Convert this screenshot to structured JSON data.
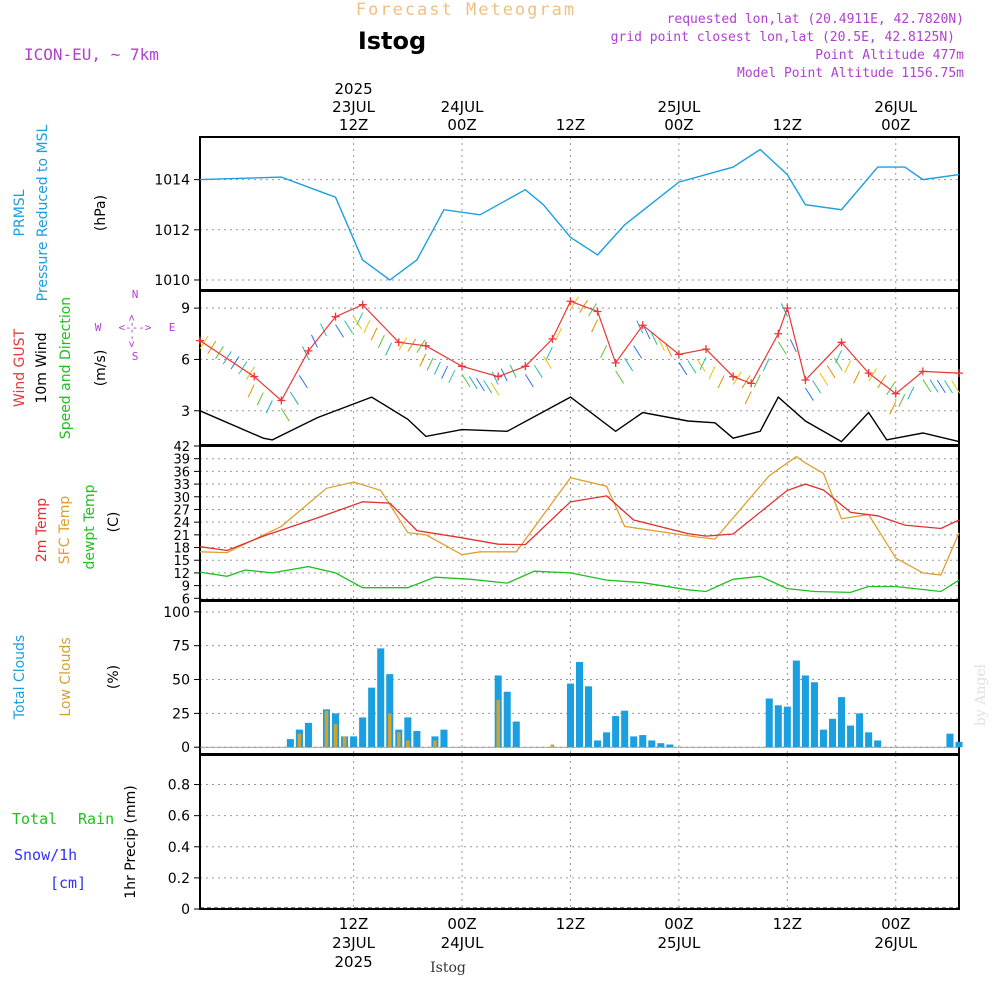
{
  "header": {
    "title": "Forecast Meteogram",
    "station": "Istog",
    "model": "ICON-EU, ~ 7km",
    "requested": "requested lon,lat (20.4911E, 42.7820N)",
    "grid_point": "grid point closest lon,lat (20.5E, 42.8125N)",
    "point_alt": "Point Altitude 477m",
    "model_alt": "Model Point Altitude 1156.75m",
    "credit": "by Angel",
    "footer_station": "Istog"
  },
  "colors": {
    "prmsl": "#1a9fe0",
    "gust": "#e83838",
    "wind10": "#000000",
    "t2m": "#e03030",
    "tsfc": "#e0a030",
    "dewpt": "#20c020",
    "total_cloud": "#1a9fe0",
    "low_cloud": "#d4a030",
    "rain": "#20c020",
    "snow": "#3030ff",
    "meta": "#b040d0",
    "title": "#f0c080"
  },
  "time_axis": {
    "start": "2025-07-22T19:00Z",
    "end": "2025-07-26T07:00Z",
    "top_labels": [
      {
        "t": "2025-07-23T12:00Z",
        "lines": [
          "2025",
          "23JUL",
          "12Z"
        ]
      },
      {
        "t": "2025-07-24T00:00Z",
        "lines": [
          "24JUL",
          "00Z"
        ]
      },
      {
        "t": "2025-07-24T12:00Z",
        "lines": [
          "12Z"
        ]
      },
      {
        "t": "2025-07-25T00:00Z",
        "lines": [
          "25JUL",
          "00Z"
        ]
      },
      {
        "t": "2025-07-25T12:00Z",
        "lines": [
          "12Z"
        ]
      },
      {
        "t": "2025-07-26T00:00Z",
        "lines": [
          "26JUL",
          "00Z"
        ]
      }
    ],
    "bottom_labels": [
      {
        "t": "2025-07-23T12:00Z",
        "lines": [
          "12Z",
          "23JUL",
          "2025"
        ]
      },
      {
        "t": "2025-07-24T00:00Z",
        "lines": [
          "00Z",
          "24JUL"
        ]
      },
      {
        "t": "2025-07-24T12:00Z",
        "lines": [
          "12Z"
        ]
      },
      {
        "t": "2025-07-25T00:00Z",
        "lines": [
          "00Z",
          "25JUL"
        ]
      },
      {
        "t": "2025-07-25T12:00Z",
        "lines": [
          "12Z"
        ]
      },
      {
        "t": "2025-07-26T00:00Z",
        "lines": [
          "00Z",
          "26JUL"
        ]
      }
    ]
  },
  "chart_data": [
    {
      "type": "line",
      "panel": "pressure",
      "labels": {
        "main": "PRMSL",
        "sub": "Pressure Reduced to MSL",
        "unit": "(hPa)"
      },
      "ylim": [
        1009.6,
        1015.7
      ],
      "yticks": [
        1010,
        1012,
        1014
      ],
      "series": [
        {
          "name": "PRMSL",
          "x": [
            "2025-07-22T19:00Z",
            "2025-07-23T04:00Z",
            "2025-07-23T10:00Z",
            "2025-07-23T13:00Z",
            "2025-07-23T16:00Z",
            "2025-07-23T19:00Z",
            "2025-07-23T22:00Z",
            "2025-07-24T02:00Z",
            "2025-07-24T07:00Z",
            "2025-07-24T09:00Z",
            "2025-07-24T12:00Z",
            "2025-07-24T15:00Z",
            "2025-07-24T18:00Z",
            "2025-07-25T00:00Z",
            "2025-07-25T06:00Z",
            "2025-07-25T09:00Z",
            "2025-07-25T12:00Z",
            "2025-07-25T14:00Z",
            "2025-07-25T18:00Z",
            "2025-07-25T22:00Z",
            "2025-07-26T01:00Z",
            "2025-07-26T03:00Z",
            "2025-07-26T07:00Z"
          ],
          "y": [
            1014.0,
            1014.1,
            1013.3,
            1010.8,
            1010.0,
            1010.8,
            1012.8,
            1012.6,
            1013.6,
            1013.0,
            1011.7,
            1011.0,
            1012.2,
            1013.9,
            1014.5,
            1015.2,
            1014.2,
            1013.0,
            1012.8,
            1014.5,
            1014.5,
            1014.0,
            1014.2
          ]
        }
      ]
    },
    {
      "type": "line",
      "panel": "wind",
      "labels": {
        "gust": "Wind GUST",
        "wind": "10m Wind",
        "sub": "Speed and Direction",
        "unit": "(m/s)",
        "n": "N",
        "s": "S",
        "w": "W",
        "e": "E",
        "arrow": "<--->"
      },
      "ylim": [
        1.0,
        10.0
      ],
      "yticks": [
        3,
        6,
        9
      ],
      "series": [
        {
          "name": "Wind GUST",
          "x": [
            "2025-07-22T19:00Z",
            "2025-07-23T01:00Z",
            "2025-07-23T04:00Z",
            "2025-07-23T07:00Z",
            "2025-07-23T10:00Z",
            "2025-07-23T13:00Z",
            "2025-07-23T17:00Z",
            "2025-07-23T20:00Z",
            "2025-07-24T00:00Z",
            "2025-07-24T04:00Z",
            "2025-07-24T07:00Z",
            "2025-07-24T10:00Z",
            "2025-07-24T12:00Z",
            "2025-07-24T15:00Z",
            "2025-07-24T17:00Z",
            "2025-07-24T20:00Z",
            "2025-07-25T00:00Z",
            "2025-07-25T03:00Z",
            "2025-07-25T06:00Z",
            "2025-07-25T08:00Z",
            "2025-07-25T11:00Z",
            "2025-07-25T12:00Z",
            "2025-07-25T14:00Z",
            "2025-07-25T18:00Z",
            "2025-07-25T21:00Z",
            "2025-07-26T00:00Z",
            "2025-07-26T03:00Z",
            "2025-07-26T07:00Z"
          ],
          "y": [
            7.1,
            5.0,
            3.6,
            6.5,
            8.5,
            9.2,
            7.0,
            6.8,
            5.6,
            5.0,
            5.6,
            7.2,
            9.4,
            8.8,
            5.8,
            8.0,
            6.3,
            6.6,
            5.0,
            4.6,
            7.5,
            9.0,
            4.8,
            7.0,
            5.2,
            4.0,
            5.3,
            5.2
          ]
        },
        {
          "name": "10m Wind",
          "x": [
            "2025-07-22T19:00Z",
            "2025-07-23T02:00Z",
            "2025-07-23T03:00Z",
            "2025-07-23T08:00Z",
            "2025-07-23T14:00Z",
            "2025-07-23T18:00Z",
            "2025-07-23T20:00Z",
            "2025-07-24T00:00Z",
            "2025-07-24T05:00Z",
            "2025-07-24T12:00Z",
            "2025-07-24T17:00Z",
            "2025-07-24T20:00Z",
            "2025-07-25T01:00Z",
            "2025-07-25T04:00Z",
            "2025-07-25T06:00Z",
            "2025-07-25T09:00Z",
            "2025-07-25T11:00Z",
            "2025-07-25T14:00Z",
            "2025-07-25T18:00Z",
            "2025-07-25T21:00Z",
            "2025-07-25T23:00Z",
            "2025-07-26T03:00Z",
            "2025-07-26T07:00Z"
          ],
          "y": [
            3.0,
            1.4,
            1.3,
            2.6,
            3.8,
            2.5,
            1.5,
            1.9,
            1.8,
            3.8,
            1.8,
            2.9,
            2.4,
            2.3,
            1.4,
            1.8,
            3.8,
            2.4,
            1.2,
            2.9,
            1.3,
            1.7,
            1.2
          ]
        }
      ]
    },
    {
      "type": "line",
      "panel": "temperature",
      "labels": {
        "t2m": "2m Temp",
        "tsfc": "SFC Temp",
        "dewpt": "dewpt Temp",
        "unit": "(C)"
      },
      "ylim": [
        5.6,
        42.0
      ],
      "yticks": [
        6,
        9,
        12,
        15,
        18,
        21,
        24,
        27,
        30,
        33,
        36,
        39,
        42
      ],
      "series": [
        {
          "name": "2m Temp",
          "x": [
            "2025-07-22T19:00Z",
            "2025-07-22T22:00Z",
            "2025-07-23T02:00Z",
            "2025-07-23T08:00Z",
            "2025-07-23T13:00Z",
            "2025-07-23T16:00Z",
            "2025-07-23T19:00Z",
            "2025-07-24T00:00Z",
            "2025-07-24T04:00Z",
            "2025-07-24T07:00Z",
            "2025-07-24T12:00Z",
            "2025-07-24T16:00Z",
            "2025-07-24T19:00Z",
            "2025-07-25T01:00Z",
            "2025-07-25T03:00Z",
            "2025-07-25T06:00Z",
            "2025-07-25T12:00Z",
            "2025-07-25T14:00Z",
            "2025-07-25T16:00Z",
            "2025-07-25T19:00Z",
            "2025-07-25T22:00Z",
            "2025-07-26T01:00Z",
            "2025-07-26T05:00Z",
            "2025-07-26T07:00Z"
          ],
          "y": [
            18.2,
            17.3,
            20.7,
            25.0,
            28.8,
            28.5,
            22.0,
            20.3,
            18.8,
            18.7,
            28.8,
            30.2,
            24.5,
            21.3,
            20.7,
            21.2,
            31.5,
            33.0,
            31.6,
            26.3,
            25.5,
            23.3,
            22.5,
            24.5
          ]
        },
        {
          "name": "SFC Temp",
          "x": [
            "2025-07-22T19:00Z",
            "2025-07-22T22:00Z",
            "2025-07-23T04:00Z",
            "2025-07-23T09:00Z",
            "2025-07-23T12:00Z",
            "2025-07-23T15:00Z",
            "2025-07-23T18:00Z",
            "2025-07-23T20:00Z",
            "2025-07-24T00:00Z",
            "2025-07-24T02:00Z",
            "2025-07-24T06:00Z",
            "2025-07-24T12:00Z",
            "2025-07-24T16:00Z",
            "2025-07-24T18:00Z",
            "2025-07-25T02:00Z",
            "2025-07-25T04:00Z",
            "2025-07-25T10:00Z",
            "2025-07-25T13:00Z",
            "2025-07-25T14:00Z",
            "2025-07-25T16:00Z",
            "2025-07-25T18:00Z",
            "2025-07-25T21:00Z",
            "2025-07-26T00:00Z",
            "2025-07-26T03:00Z",
            "2025-07-26T05:00Z",
            "2025-07-26T07:00Z"
          ],
          "y": [
            17.0,
            16.8,
            23.0,
            32.0,
            33.5,
            31.5,
            21.5,
            21.0,
            16.3,
            17.0,
            17.0,
            34.5,
            32.5,
            23.0,
            20.5,
            20.0,
            35.0,
            39.5,
            38.0,
            35.5,
            24.8,
            25.8,
            15.5,
            12.0,
            11.5,
            21.5
          ]
        },
        {
          "name": "dewpt Temp",
          "x": [
            "2025-07-22T19:00Z",
            "2025-07-22T22:00Z",
            "2025-07-23T00:00Z",
            "2025-07-23T03:00Z",
            "2025-07-23T07:00Z",
            "2025-07-23T10:00Z",
            "2025-07-23T13:00Z",
            "2025-07-23T18:00Z",
            "2025-07-23T21:00Z",
            "2025-07-24T01:00Z",
            "2025-07-24T05:00Z",
            "2025-07-24T08:00Z",
            "2025-07-24T12:00Z",
            "2025-07-24T16:00Z",
            "2025-07-24T20:00Z",
            "2025-07-25T01:00Z",
            "2025-07-25T03:00Z",
            "2025-07-25T06:00Z",
            "2025-07-25T09:00Z",
            "2025-07-25T12:00Z",
            "2025-07-25T15:00Z",
            "2025-07-25T19:00Z",
            "2025-07-25T21:00Z",
            "2025-07-26T00:00Z",
            "2025-07-26T05:00Z",
            "2025-07-26T07:00Z"
          ],
          "y": [
            12.2,
            11.2,
            12.7,
            12.0,
            13.5,
            12.0,
            8.5,
            8.5,
            11.0,
            10.5,
            9.6,
            12.4,
            12.0,
            10.3,
            9.7,
            8.0,
            7.6,
            10.5,
            11.2,
            8.3,
            7.6,
            7.4,
            8.8,
            8.8,
            7.6,
            10.3
          ]
        }
      ]
    },
    {
      "type": "bar",
      "panel": "clouds",
      "labels": {
        "total": "Total Clouds",
        "low": "Low Clouds",
        "unit": "(%)"
      },
      "ylim": [
        -5,
        108
      ],
      "yticks": [
        0,
        25,
        50,
        75,
        100
      ],
      "series": [
        {
          "name": "Total Clouds",
          "x": [
            "2025-07-23T05:00Z",
            "2025-07-23T06:00Z",
            "2025-07-23T07:00Z",
            "2025-07-23T09:00Z",
            "2025-07-23T10:00Z",
            "2025-07-23T11:00Z",
            "2025-07-23T12:00Z",
            "2025-07-23T13:00Z",
            "2025-07-23T14:00Z",
            "2025-07-23T15:00Z",
            "2025-07-23T16:00Z",
            "2025-07-23T17:00Z",
            "2025-07-23T18:00Z",
            "2025-07-23T19:00Z",
            "2025-07-23T21:00Z",
            "2025-07-23T22:00Z",
            "2025-07-24T04:00Z",
            "2025-07-24T05:00Z",
            "2025-07-24T06:00Z",
            "2025-07-24T12:00Z",
            "2025-07-24T13:00Z",
            "2025-07-24T14:00Z",
            "2025-07-24T15:00Z",
            "2025-07-24T16:00Z",
            "2025-07-24T17:00Z",
            "2025-07-24T18:00Z",
            "2025-07-24T19:00Z",
            "2025-07-24T20:00Z",
            "2025-07-24T21:00Z",
            "2025-07-24T22:00Z",
            "2025-07-24T23:00Z",
            "2025-07-25T10:00Z",
            "2025-07-25T11:00Z",
            "2025-07-25T12:00Z",
            "2025-07-25T13:00Z",
            "2025-07-25T14:00Z",
            "2025-07-25T15:00Z",
            "2025-07-25T16:00Z",
            "2025-07-25T17:00Z",
            "2025-07-25T18:00Z",
            "2025-07-25T19:00Z",
            "2025-07-25T20:00Z",
            "2025-07-25T21:00Z",
            "2025-07-25T22:00Z",
            "2025-07-26T06:00Z",
            "2025-07-26T07:00Z"
          ],
          "y": [
            6,
            13,
            18,
            28,
            25,
            8,
            8,
            22,
            44,
            73,
            54,
            13,
            22,
            12,
            8,
            13,
            53,
            41,
            19,
            47,
            63,
            45,
            5,
            11,
            23,
            27,
            8,
            9,
            5,
            3,
            2,
            36,
            31,
            30,
            64,
            53,
            48,
            13,
            21,
            37,
            16,
            25,
            11,
            5,
            10,
            4
          ]
        },
        {
          "name": "Low Clouds",
          "x": [
            "2025-07-23T06:00Z",
            "2025-07-23T09:00Z",
            "2025-07-23T10:00Z",
            "2025-07-23T11:00Z",
            "2025-07-23T16:00Z",
            "2025-07-23T17:00Z",
            "2025-07-23T18:00Z",
            "2025-07-23T21:00Z",
            "2025-07-24T04:00Z",
            "2025-07-24T10:00Z"
          ],
          "y": [
            10,
            27,
            17,
            8,
            25,
            11,
            5,
            5,
            35,
            2
          ]
        }
      ]
    },
    {
      "type": "bar",
      "panel": "precip",
      "labels": {
        "total": "Total",
        "rain": "Rain",
        "snow": "Snow/1h",
        "cm": "[cm]",
        "unit": "1hr Precip (mm)"
      },
      "ylim": [
        0,
        0.99
      ],
      "yticks": [
        "0",
        "0.2",
        "0.4",
        "0.6",
        "0.8"
      ],
      "series": []
    }
  ]
}
